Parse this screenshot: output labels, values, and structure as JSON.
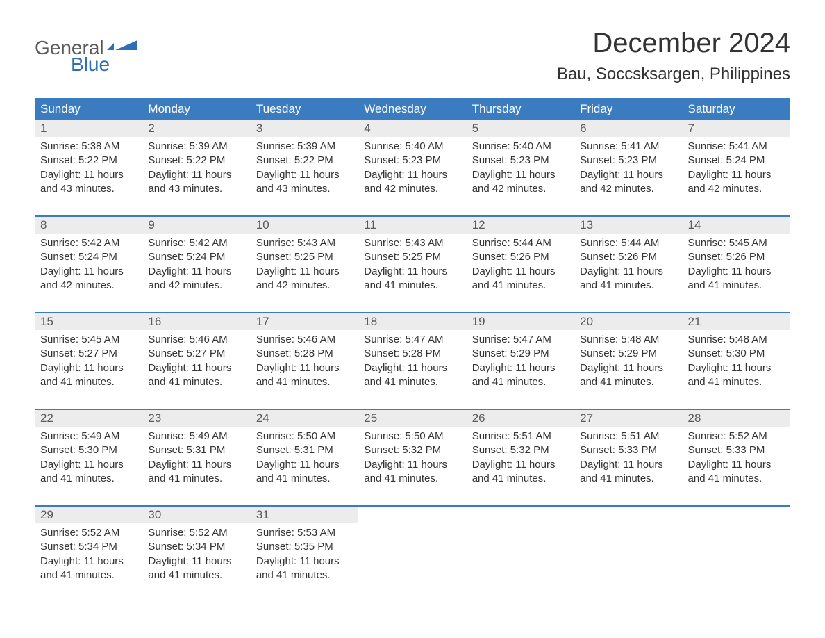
{
  "logo": {
    "general": "General",
    "blue": "Blue"
  },
  "title": "December 2024",
  "location": "Bau, Soccsksargen, Philippines",
  "colors": {
    "header_bg": "#3b7bbf",
    "header_text": "#ffffff",
    "daynum_bg": "#ececec",
    "daynum_text": "#5a5a5a",
    "content_text": "#333333",
    "row_sep": "#3b7bbf",
    "logo_gray": "#5a5a5a",
    "logo_blue": "#2d6fb5",
    "page_bg": "#ffffff"
  },
  "fonts": {
    "title_size_pt": 30,
    "location_size_pt": 18,
    "header_size_pt": 13,
    "daynum_size_pt": 13,
    "content_size_pt": 11
  },
  "day_headers": [
    "Sunday",
    "Monday",
    "Tuesday",
    "Wednesday",
    "Thursday",
    "Friday",
    "Saturday"
  ],
  "weeks": [
    [
      {
        "num": "1",
        "sunrise": "Sunrise: 5:38 AM",
        "sunset": "Sunset: 5:22 PM",
        "dl1": "Daylight: 11 hours",
        "dl2": "and 43 minutes."
      },
      {
        "num": "2",
        "sunrise": "Sunrise: 5:39 AM",
        "sunset": "Sunset: 5:22 PM",
        "dl1": "Daylight: 11 hours",
        "dl2": "and 43 minutes."
      },
      {
        "num": "3",
        "sunrise": "Sunrise: 5:39 AM",
        "sunset": "Sunset: 5:22 PM",
        "dl1": "Daylight: 11 hours",
        "dl2": "and 43 minutes."
      },
      {
        "num": "4",
        "sunrise": "Sunrise: 5:40 AM",
        "sunset": "Sunset: 5:23 PM",
        "dl1": "Daylight: 11 hours",
        "dl2": "and 42 minutes."
      },
      {
        "num": "5",
        "sunrise": "Sunrise: 5:40 AM",
        "sunset": "Sunset: 5:23 PM",
        "dl1": "Daylight: 11 hours",
        "dl2": "and 42 minutes."
      },
      {
        "num": "6",
        "sunrise": "Sunrise: 5:41 AM",
        "sunset": "Sunset: 5:23 PM",
        "dl1": "Daylight: 11 hours",
        "dl2": "and 42 minutes."
      },
      {
        "num": "7",
        "sunrise": "Sunrise: 5:41 AM",
        "sunset": "Sunset: 5:24 PM",
        "dl1": "Daylight: 11 hours",
        "dl2": "and 42 minutes."
      }
    ],
    [
      {
        "num": "8",
        "sunrise": "Sunrise: 5:42 AM",
        "sunset": "Sunset: 5:24 PM",
        "dl1": "Daylight: 11 hours",
        "dl2": "and 42 minutes."
      },
      {
        "num": "9",
        "sunrise": "Sunrise: 5:42 AM",
        "sunset": "Sunset: 5:24 PM",
        "dl1": "Daylight: 11 hours",
        "dl2": "and 42 minutes."
      },
      {
        "num": "10",
        "sunrise": "Sunrise: 5:43 AM",
        "sunset": "Sunset: 5:25 PM",
        "dl1": "Daylight: 11 hours",
        "dl2": "and 42 minutes."
      },
      {
        "num": "11",
        "sunrise": "Sunrise: 5:43 AM",
        "sunset": "Sunset: 5:25 PM",
        "dl1": "Daylight: 11 hours",
        "dl2": "and 41 minutes."
      },
      {
        "num": "12",
        "sunrise": "Sunrise: 5:44 AM",
        "sunset": "Sunset: 5:26 PM",
        "dl1": "Daylight: 11 hours",
        "dl2": "and 41 minutes."
      },
      {
        "num": "13",
        "sunrise": "Sunrise: 5:44 AM",
        "sunset": "Sunset: 5:26 PM",
        "dl1": "Daylight: 11 hours",
        "dl2": "and 41 minutes."
      },
      {
        "num": "14",
        "sunrise": "Sunrise: 5:45 AM",
        "sunset": "Sunset: 5:26 PM",
        "dl1": "Daylight: 11 hours",
        "dl2": "and 41 minutes."
      }
    ],
    [
      {
        "num": "15",
        "sunrise": "Sunrise: 5:45 AM",
        "sunset": "Sunset: 5:27 PM",
        "dl1": "Daylight: 11 hours",
        "dl2": "and 41 minutes."
      },
      {
        "num": "16",
        "sunrise": "Sunrise: 5:46 AM",
        "sunset": "Sunset: 5:27 PM",
        "dl1": "Daylight: 11 hours",
        "dl2": "and 41 minutes."
      },
      {
        "num": "17",
        "sunrise": "Sunrise: 5:46 AM",
        "sunset": "Sunset: 5:28 PM",
        "dl1": "Daylight: 11 hours",
        "dl2": "and 41 minutes."
      },
      {
        "num": "18",
        "sunrise": "Sunrise: 5:47 AM",
        "sunset": "Sunset: 5:28 PM",
        "dl1": "Daylight: 11 hours",
        "dl2": "and 41 minutes."
      },
      {
        "num": "19",
        "sunrise": "Sunrise: 5:47 AM",
        "sunset": "Sunset: 5:29 PM",
        "dl1": "Daylight: 11 hours",
        "dl2": "and 41 minutes."
      },
      {
        "num": "20",
        "sunrise": "Sunrise: 5:48 AM",
        "sunset": "Sunset: 5:29 PM",
        "dl1": "Daylight: 11 hours",
        "dl2": "and 41 minutes."
      },
      {
        "num": "21",
        "sunrise": "Sunrise: 5:48 AM",
        "sunset": "Sunset: 5:30 PM",
        "dl1": "Daylight: 11 hours",
        "dl2": "and 41 minutes."
      }
    ],
    [
      {
        "num": "22",
        "sunrise": "Sunrise: 5:49 AM",
        "sunset": "Sunset: 5:30 PM",
        "dl1": "Daylight: 11 hours",
        "dl2": "and 41 minutes."
      },
      {
        "num": "23",
        "sunrise": "Sunrise: 5:49 AM",
        "sunset": "Sunset: 5:31 PM",
        "dl1": "Daylight: 11 hours",
        "dl2": "and 41 minutes."
      },
      {
        "num": "24",
        "sunrise": "Sunrise: 5:50 AM",
        "sunset": "Sunset: 5:31 PM",
        "dl1": "Daylight: 11 hours",
        "dl2": "and 41 minutes."
      },
      {
        "num": "25",
        "sunrise": "Sunrise: 5:50 AM",
        "sunset": "Sunset: 5:32 PM",
        "dl1": "Daylight: 11 hours",
        "dl2": "and 41 minutes."
      },
      {
        "num": "26",
        "sunrise": "Sunrise: 5:51 AM",
        "sunset": "Sunset: 5:32 PM",
        "dl1": "Daylight: 11 hours",
        "dl2": "and 41 minutes."
      },
      {
        "num": "27",
        "sunrise": "Sunrise: 5:51 AM",
        "sunset": "Sunset: 5:33 PM",
        "dl1": "Daylight: 11 hours",
        "dl2": "and 41 minutes."
      },
      {
        "num": "28",
        "sunrise": "Sunrise: 5:52 AM",
        "sunset": "Sunset: 5:33 PM",
        "dl1": "Daylight: 11 hours",
        "dl2": "and 41 minutes."
      }
    ],
    [
      {
        "num": "29",
        "sunrise": "Sunrise: 5:52 AM",
        "sunset": "Sunset: 5:34 PM",
        "dl1": "Daylight: 11 hours",
        "dl2": "and 41 minutes."
      },
      {
        "num": "30",
        "sunrise": "Sunrise: 5:52 AM",
        "sunset": "Sunset: 5:34 PM",
        "dl1": "Daylight: 11 hours",
        "dl2": "and 41 minutes."
      },
      {
        "num": "31",
        "sunrise": "Sunrise: 5:53 AM",
        "sunset": "Sunset: 5:35 PM",
        "dl1": "Daylight: 11 hours",
        "dl2": "and 41 minutes."
      },
      null,
      null,
      null,
      null
    ]
  ]
}
